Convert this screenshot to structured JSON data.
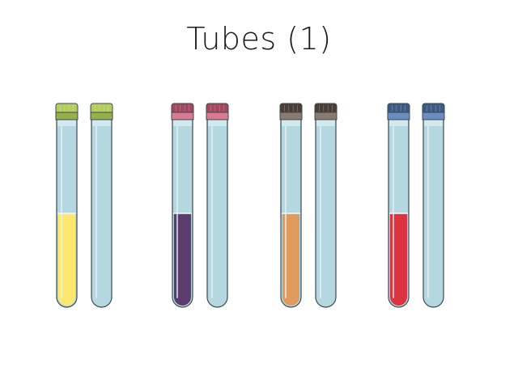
{
  "slide": {
    "title": "Tubes (1)"
  },
  "colors": {
    "glass_fill": "#b5d7e0",
    "glass_stroke": "#3d4a52",
    "band": "#d9edf2"
  },
  "tube_pairs": [
    {
      "name": "green-cap-pair",
      "cap_color": "#b5cc5c",
      "cap_band": "#95b04a",
      "liquid_color": "#fde76e",
      "liquid_level": 0.5
    },
    {
      "name": "pink-cap-pair",
      "cap_color": "#a3465e",
      "cap_band": "#d77a92",
      "liquid_color": "#5c3c6c",
      "liquid_level": 0.5
    },
    {
      "name": "brown-cap-pair",
      "cap_color": "#4a3d38",
      "cap_band": "#8a7a70",
      "liquid_color": "#e09a5c",
      "liquid_level": 0.5
    },
    {
      "name": "blue-cap-pair",
      "cap_color": "#3d5a82",
      "cap_band": "#6a8ec0",
      "liquid_color": "#dd3340",
      "liquid_level": 0.5
    }
  ]
}
